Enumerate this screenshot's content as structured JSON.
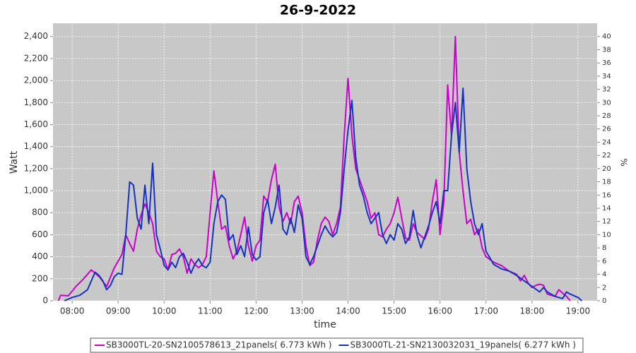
{
  "chart_data": {
    "type": "line",
    "title": "26-9-2022",
    "x_label": "time",
    "y_label": "Watt",
    "y2_label": "%",
    "xlim": [
      455,
      1165
    ],
    "ylim": [
      0,
      2520
    ],
    "y2lim": [
      0,
      42
    ],
    "grid": true,
    "legend": "bottom",
    "xticks": [
      {
        "value": 480,
        "label": "08:00"
      },
      {
        "value": 540,
        "label": "09:00"
      },
      {
        "value": 600,
        "label": "10:00"
      },
      {
        "value": 660,
        "label": "11:00"
      },
      {
        "value": 720,
        "label": "12:00"
      },
      {
        "value": 780,
        "label": "13:00"
      },
      {
        "value": 840,
        "label": "14:00"
      },
      {
        "value": 900,
        "label": "15:00"
      },
      {
        "value": 960,
        "label": "16:00"
      },
      {
        "value": 1020,
        "label": "17:00"
      },
      {
        "value": 1080,
        "label": "18:00"
      },
      {
        "value": 1140,
        "label": "19:00"
      }
    ],
    "yticks": [
      0,
      200,
      400,
      600,
      800,
      {
        "value": 1000,
        "label": "1,000"
      },
      {
        "value": 1200,
        "label": "1,200"
      },
      {
        "value": 1400,
        "label": "1,400"
      },
      {
        "value": 1600,
        "label": "1,600"
      },
      {
        "value": 1800,
        "label": "1,800"
      },
      {
        "value": 2000,
        "label": "2,000"
      },
      {
        "value": 2200,
        "label": "2,200"
      },
      {
        "value": 2400,
        "label": "2,400"
      }
    ],
    "y2ticks": [
      0,
      2,
      4,
      6,
      8,
      10,
      12,
      14,
      16,
      18,
      20,
      22,
      24,
      26,
      28,
      30,
      32,
      34,
      36,
      38,
      40
    ],
    "series": [
      {
        "name": "SB3000TL-20-SN2100578613_21panels( 6.773 kWh )",
        "color": "#cc00cc",
        "x": [
          462,
          465,
          475,
          485,
          495,
          505,
          515,
          525,
          535,
          545,
          550,
          555,
          560,
          565,
          570,
          575,
          580,
          585,
          590,
          595,
          600,
          605,
          610,
          615,
          620,
          625,
          630,
          635,
          640,
          645,
          650,
          655,
          660,
          665,
          670,
          675,
          680,
          685,
          690,
          695,
          700,
          705,
          710,
          715,
          720,
          725,
          730,
          735,
          740,
          745,
          750,
          755,
          760,
          765,
          770,
          775,
          780,
          785,
          790,
          795,
          800,
          805,
          810,
          815,
          820,
          825,
          830,
          835,
          840,
          845,
          850,
          855,
          860,
          865,
          870,
          875,
          880,
          885,
          890,
          895,
          900,
          905,
          910,
          915,
          920,
          925,
          930,
          935,
          940,
          945,
          950,
          955,
          960,
          965,
          970,
          975,
          980,
          985,
          990,
          995,
          1000,
          1005,
          1010,
          1015,
          1020,
          1030,
          1040,
          1050,
          1060,
          1065,
          1070,
          1075,
          1080,
          1085,
          1090,
          1095,
          1100,
          1105,
          1110,
          1115,
          1120,
          1125,
          1130
        ],
        "values": [
          0,
          50,
          45,
          130,
          200,
          280,
          220,
          130,
          300,
          420,
          600,
          520,
          450,
          650,
          780,
          880,
          800,
          700,
          450,
          400,
          380,
          280,
          420,
          430,
          470,
          400,
          250,
          380,
          330,
          300,
          330,
          400,
          800,
          1180,
          900,
          650,
          680,
          500,
          380,
          450,
          600,
          760,
          500,
          360,
          500,
          550,
          950,
          900,
          1100,
          1240,
          850,
          720,
          800,
          700,
          900,
          950,
          800,
          500,
          320,
          350,
          550,
          700,
          760,
          720,
          600,
          700,
          850,
          1500,
          2020,
          1500,
          1200,
          1100,
          1000,
          900,
          750,
          800,
          600,
          580,
          650,
          700,
          800,
          940,
          750,
          570,
          550,
          700,
          620,
          590,
          560,
          650,
          900,
          1100,
          600,
          900,
          1960,
          1500,
          2400,
          1350,
          1000,
          700,
          740,
          600,
          650,
          480,
          400,
          350,
          320,
          270,
          240,
          180,
          230,
          160,
          120,
          140,
          150,
          140,
          60,
          50,
          40,
          100,
          70,
          40,
          0
        ]
      },
      {
        "name": "SB3000TL-21-SN2130032031_19panels( 6.277 kWh )",
        "color": "#1533c0",
        "x": [
          470,
          480,
          490,
          500,
          505,
          510,
          515,
          520,
          525,
          530,
          535,
          540,
          545,
          550,
          555,
          560,
          565,
          570,
          575,
          580,
          585,
          590,
          595,
          600,
          605,
          610,
          615,
          620,
          625,
          630,
          635,
          640,
          645,
          650,
          655,
          660,
          665,
          670,
          675,
          680,
          685,
          690,
          695,
          700,
          705,
          710,
          715,
          720,
          725,
          730,
          735,
          740,
          745,
          750,
          755,
          760,
          765,
          770,
          775,
          780,
          785,
          790,
          795,
          800,
          805,
          810,
          815,
          820,
          825,
          830,
          835,
          840,
          845,
          850,
          855,
          860,
          865,
          870,
          875,
          880,
          885,
          890,
          895,
          900,
          905,
          910,
          915,
          920,
          925,
          930,
          935,
          940,
          945,
          950,
          955,
          960,
          965,
          970,
          975,
          980,
          985,
          990,
          995,
          1000,
          1005,
          1010,
          1015,
          1020,
          1030,
          1040,
          1050,
          1060,
          1070,
          1080,
          1090,
          1095,
          1100,
          1110,
          1120,
          1125,
          1130,
          1140,
          1145
        ],
        "values": [
          0,
          30,
          50,
          100,
          180,
          260,
          230,
          180,
          100,
          140,
          220,
          250,
          240,
          600,
          1080,
          1050,
          750,
          650,
          1050,
          700,
          1250,
          600,
          470,
          320,
          280,
          350,
          300,
          400,
          430,
          350,
          250,
          330,
          380,
          320,
          300,
          350,
          700,
          900,
          960,
          920,
          550,
          600,
          420,
          500,
          400,
          670,
          420,
          370,
          400,
          800,
          920,
          700,
          850,
          1050,
          650,
          600,
          750,
          620,
          870,
          750,
          400,
          330,
          400,
          500,
          600,
          680,
          620,
          580,
          620,
          800,
          1200,
          1550,
          1820,
          1300,
          1050,
          950,
          800,
          700,
          750,
          800,
          600,
          520,
          600,
          550,
          700,
          650,
          520,
          580,
          820,
          600,
          480,
          580,
          680,
          800,
          900,
          700,
          1000,
          1000,
          1500,
          1800,
          1350,
          1930,
          1200,
          900,
          700,
          600,
          700,
          450,
          330,
          290,
          270,
          230,
          180,
          130,
          80,
          120,
          80,
          40,
          20,
          80,
          60,
          30,
          0
        ]
      }
    ]
  }
}
